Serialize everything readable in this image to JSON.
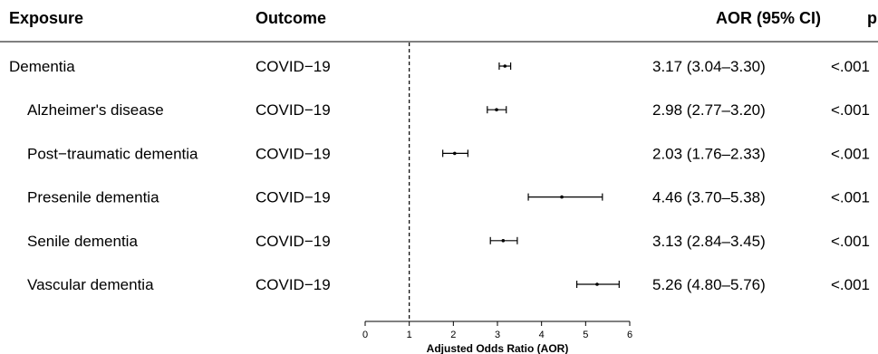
{
  "headers": {
    "exposure": "Exposure",
    "outcome": "Outcome",
    "aor": "AOR (95% CI)",
    "p": "p"
  },
  "chart_data": {
    "type": "forest",
    "title": "",
    "xlabel": "Adjusted Odds Ratio (AOR)",
    "xlim": [
      0,
      6
    ],
    "xticks": [
      "0",
      "1",
      "2",
      "3",
      "4",
      "5",
      "6"
    ],
    "reference_line": 1,
    "rows": [
      {
        "exposure": "Dementia",
        "indent": false,
        "outcome": "COVID−19",
        "aor": 3.17,
        "lower": 3.04,
        "upper": 3.3,
        "aor_text": "3.17 (3.04–3.30)",
        "p": "<.001"
      },
      {
        "exposure": "Alzheimer's disease",
        "indent": true,
        "outcome": "COVID−19",
        "aor": 2.98,
        "lower": 2.77,
        "upper": 3.2,
        "aor_text": "2.98 (2.77–3.20)",
        "p": "<.001"
      },
      {
        "exposure": "Post−traumatic dementia",
        "indent": true,
        "outcome": "COVID−19",
        "aor": 2.03,
        "lower": 1.76,
        "upper": 2.33,
        "aor_text": "2.03 (1.76–2.33)",
        "p": "<.001"
      },
      {
        "exposure": "Presenile dementia",
        "indent": true,
        "outcome": "COVID−19",
        "aor": 4.46,
        "lower": 3.7,
        "upper": 5.38,
        "aor_text": "4.46 (3.70–5.38)",
        "p": "<.001"
      },
      {
        "exposure": "Senile dementia",
        "indent": true,
        "outcome": "COVID−19",
        "aor": 3.13,
        "lower": 2.84,
        "upper": 3.45,
        "aor_text": "3.13 (2.84–3.45)",
        "p": "<.001"
      },
      {
        "exposure": "Vascular dementia",
        "indent": true,
        "outcome": "COVID−19",
        "aor": 5.26,
        "lower": 4.8,
        "upper": 5.76,
        "aor_text": "5.26 (4.80–5.76)",
        "p": "<.001"
      }
    ]
  }
}
